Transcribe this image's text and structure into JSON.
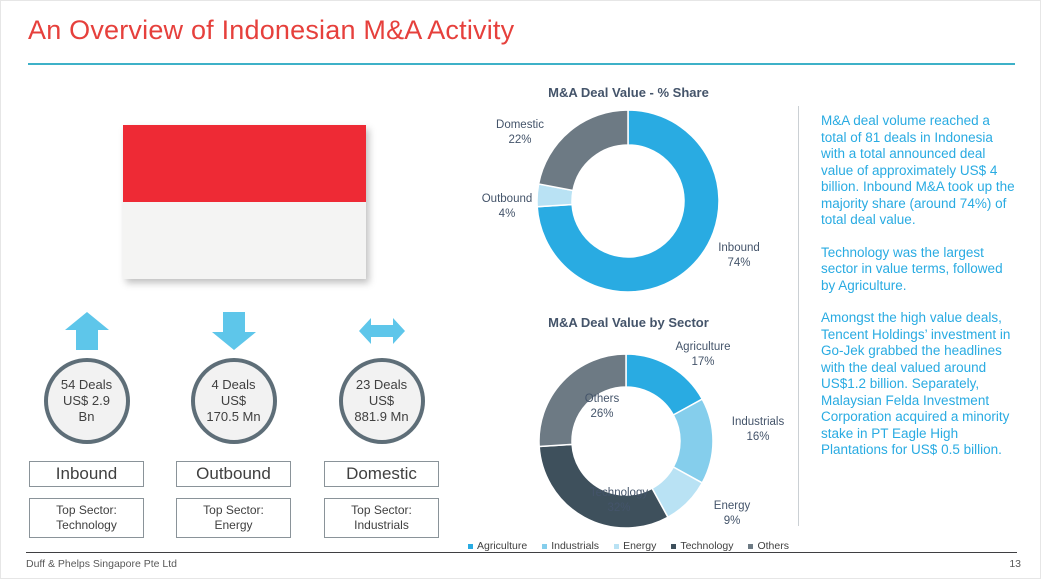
{
  "colors": {
    "accent_red": "#e6403c",
    "accent_teal": "#3eb1c8",
    "accent_blue": "#29abe2",
    "arrow_blue": "#5ec6ea",
    "slate": "#44546a",
    "flag_red": "#ee2a35"
  },
  "header": {
    "title": "An Overview of Indonesian M&A Activity"
  },
  "flag": {
    "country": "Indonesia"
  },
  "stats": [
    {
      "direction": "up",
      "deals": "54 Deals",
      "value_lines": [
        "US$ 2.9",
        "Bn"
      ],
      "category": "Inbound",
      "top_sector_label": "Top Sector:",
      "top_sector": "Technology"
    },
    {
      "direction": "down",
      "deals": "4 Deals",
      "value_lines": [
        "US$",
        "170.5 Mn"
      ],
      "category": "Outbound",
      "top_sector_label": "Top Sector:",
      "top_sector": "Energy"
    },
    {
      "direction": "both",
      "deals": "23 Deals",
      "value_lines": [
        "US$",
        "881.9 Mn"
      ],
      "category": "Domestic",
      "top_sector_label": "Top Sector:",
      "top_sector": "Industrials"
    }
  ],
  "chart_data": [
    {
      "type": "donut",
      "title": "M&A Deal Value - % Share",
      "start_angle_deg": 0,
      "direction": "clockwise",
      "legend": "none",
      "slices": [
        {
          "name": "Inbound",
          "pct": 74,
          "pct_label": "74%",
          "color": "#29abe2"
        },
        {
          "name": "Outbound",
          "pct": 4,
          "pct_label": "4%",
          "color": "#b9e2f4"
        },
        {
          "name": "Domestic",
          "pct": 22,
          "pct_label": "22%",
          "color": "#6d7a84"
        }
      ]
    },
    {
      "type": "donut",
      "title": "M&A Deal Value by Sector",
      "start_angle_deg": 0,
      "direction": "clockwise",
      "legend": "bottom",
      "slices": [
        {
          "name": "Agriculture",
          "pct": 17,
          "pct_label": "17%",
          "color": "#29abe2"
        },
        {
          "name": "Industrials",
          "pct": 16,
          "pct_label": "16%",
          "color": "#85ceec"
        },
        {
          "name": "Energy",
          "pct": 9,
          "pct_label": "9%",
          "color": "#b9e2f4"
        },
        {
          "name": "Technology",
          "pct": 32,
          "pct_label": "32%",
          "color": "#3e505c"
        },
        {
          "name": "Others",
          "pct": 26,
          "pct_label": "26%",
          "color": "#6d7a84"
        }
      ]
    }
  ],
  "commentary": {
    "paragraphs": [
      "M&A deal volume reached a total of 81 deals in Indonesia with a total announced deal value of approximately US$ 4 billion. Inbound M&A took up the majority share (around 74%) of total deal value.",
      "Technology was the largest sector in value terms, followed by Agriculture.",
      "Amongst the high value deals, Tencent Holdings’ investment in Go-Jek grabbed the headlines with the deal valued around US$1.2 billion. Separately, Malaysian Felda Investment Corporation acquired a minority stake in PT Eagle High Plantations for US$ 0.5 billion."
    ]
  },
  "footer": {
    "company": "Duff & Phelps Singapore Pte Ltd",
    "page": "13"
  }
}
